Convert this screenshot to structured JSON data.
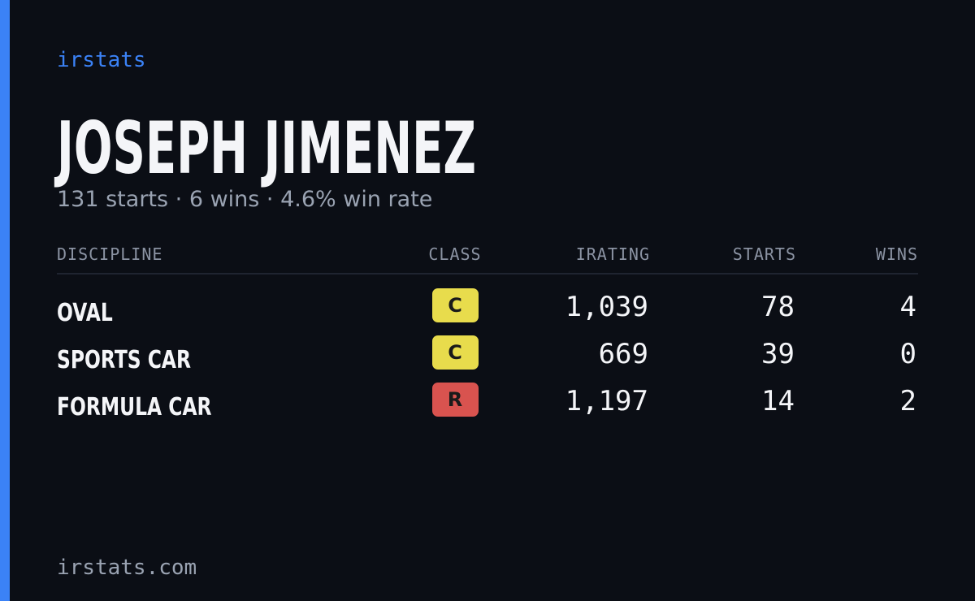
{
  "header": {
    "brand": "irstats",
    "name": "JOSEPH JIMENEZ",
    "subtitle": "131 starts · 6 wins · 4.6% win rate"
  },
  "table": {
    "columns": [
      "DISCIPLINE",
      "CLASS",
      "IRATING",
      "STARTS",
      "WINS"
    ],
    "rows": [
      {
        "discipline": "OVAL",
        "class": "C",
        "class_color": "#e8dc4c",
        "irating": "1,039",
        "starts": "78",
        "wins": "4"
      },
      {
        "discipline": "SPORTS CAR",
        "class": "C",
        "class_color": "#e8dc4c",
        "irating": "669",
        "starts": "39",
        "wins": "0"
      },
      {
        "discipline": "FORMULA CAR",
        "class": "R",
        "class_color": "#d9534f",
        "irating": "1,197",
        "starts": "14",
        "wins": "2"
      }
    ]
  },
  "footer": {
    "site": "irstats.com"
  }
}
